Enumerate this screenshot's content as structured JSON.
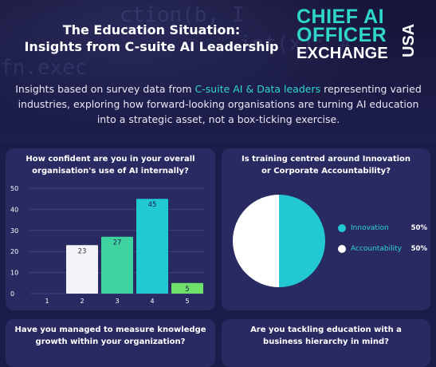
{
  "header": {
    "title_line1": "The Education Situation:",
    "title_line2": "Insights from C-suite AI Leadership",
    "logo_line1": "CHIEF AI",
    "logo_line2": "OFFICER",
    "logo_line3": "EXCHANGE",
    "logo_side": "USA"
  },
  "intro": {
    "part1": "Insights based on survey data from ",
    "highlight": "C-suite AI & Data leaders",
    "part2": " representing varied industries, exploring how forward-looking organisations are turning AI education into a strategic asset, not a box-ticking exercise."
  },
  "colors": {
    "accent": "#2fd6c9",
    "background": "#1c1c4a",
    "card": "#2a2a63"
  },
  "chart_data": [
    {
      "type": "bar",
      "title": "How confident are you in your overall organisation's use of AI internally?",
      "categories": [
        "1",
        "2",
        "3",
        "4",
        "5"
      ],
      "values": [
        0,
        23,
        27,
        45,
        5
      ],
      "data_labels": [
        "",
        "23",
        "27",
        "45",
        "5"
      ],
      "bar_colors": [
        "#ffffff",
        "#f4f4f8",
        "#3fd3a0",
        "#22c8d2",
        "#6fe06a"
      ],
      "ylim": [
        0,
        50
      ],
      "yticks": [
        "0",
        "10",
        "20",
        "30",
        "40",
        "50"
      ],
      "grid": true,
      "xlabel": "",
      "ylabel": ""
    },
    {
      "type": "pie",
      "title": "Is training centred around Innovation or Corporate Accountability?",
      "labels": [
        "Innovation",
        "Accountability"
      ],
      "values": [
        50,
        50
      ],
      "value_labels": [
        "50%",
        "50%"
      ],
      "colors": [
        "#22c8d2",
        "#ffffff"
      ],
      "legend": "right"
    }
  ],
  "bottom_cards": {
    "left_title": "Have you managed to measure knowledge growth within your organization?",
    "right_title": "Are you tackling education with a business hierarchy in mind?"
  }
}
